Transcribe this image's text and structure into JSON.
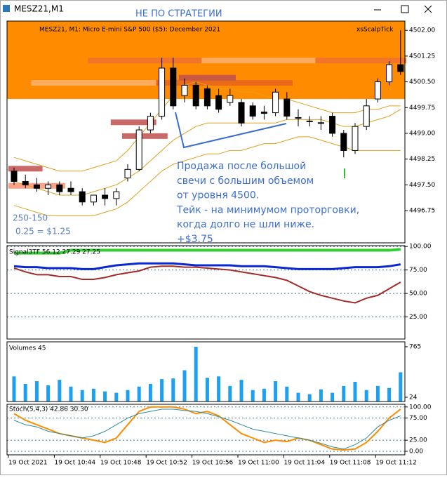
{
  "window": {
    "title": "MESZ21,M1",
    "note": "НЕ ПО СТРАТЕГИИ"
  },
  "main": {
    "header": "MESZ21, M1:  Micro E-mini S&P 500 ($5): December 2021",
    "indicator": "xsScalpTick",
    "ylim": [
      4495.81,
      4502.27
    ],
    "yticks": [
      {
        "value": 4502,
        "label": "4502.00"
      },
      {
        "value": 4501.25,
        "label": "4501.25"
      },
      {
        "value": 4500.5,
        "label": "4500.50"
      },
      {
        "value": 4499.75,
        "label": "4499.75"
      },
      {
        "value": 4499,
        "label": "4499.00"
      },
      {
        "value": 4498.25,
        "label": "4498.25"
      },
      {
        "value": 4497.5,
        "label": "4497.50"
      },
      {
        "value": 4496.75,
        "label": "4496.75"
      }
    ],
    "zone": {
      "from": 4500,
      "color": "#ff8c00"
    },
    "levels": [
      [
        4501.1,
        7,
        17
      ],
      [
        4501.1,
        27,
        35
      ],
      [
        4501.1,
        17,
        27
      ],
      [
        4500.45,
        2,
        13
      ],
      [
        4500.45,
        13,
        25
      ],
      [
        4500.6,
        15,
        20
      ],
      [
        4499.3,
        9,
        13
      ],
      [
        4498.9,
        10,
        14
      ],
      [
        4497.45,
        0,
        5
      ],
      [
        4497.95,
        0,
        3
      ]
    ],
    "level_colors": [
      "#f07030",
      "#f07030",
      "#ffb070",
      "#ffb070",
      "#e8641e",
      "#c0504d",
      "#c0504d",
      "#c0504d",
      "#ff9070",
      "#c0504d"
    ],
    "candles": [
      [
        4497.9,
        4498.0,
        4497.5,
        4497.6
      ],
      [
        4497.6,
        4497.8,
        4497.4,
        4497.5
      ],
      [
        4497.5,
        4497.7,
        4497.3,
        4497.4
      ],
      [
        4497.4,
        4497.6,
        4497.2,
        4497.5
      ],
      [
        4497.5,
        4497.6,
        4497.2,
        4497.3
      ],
      [
        4497.4,
        4497.6,
        4497.2,
        4497.3
      ],
      [
        4497.3,
        4497.4,
        4496.9,
        4497.0
      ],
      [
        4497.0,
        4497.2,
        4496.9,
        4497.2
      ],
      [
        4497.2,
        4497.4,
        4496.9,
        4497.1
      ],
      [
        4497.1,
        4497.4,
        4496.9,
        4497.3
      ],
      [
        4497.7,
        4498.1,
        4497.6,
        4497.95
      ],
      [
        4497.95,
        4499.2,
        4497.9,
        4499.1
      ],
      [
        4499.1,
        4499.6,
        4499.0,
        4499.5
      ],
      [
        4499.5,
        4501.2,
        4499.4,
        4500.9
      ],
      [
        4500.9,
        4501.2,
        4499.7,
        4499.8
      ],
      [
        4500.1,
        4500.6,
        4499.9,
        4500.4
      ],
      [
        4500.4,
        4500.5,
        4499.7,
        4499.8
      ],
      [
        4500.3,
        4500.4,
        4499.7,
        4499.8
      ],
      [
        4500.1,
        4500.3,
        4499.6,
        4499.7
      ],
      [
        4499.9,
        4500.3,
        4499.8,
        4500.1
      ],
      [
        4499.9,
        4500.0,
        4499.2,
        4499.3
      ],
      [
        4499.8,
        4499.9,
        4499.4,
        4499.5
      ],
      [
        4499.62,
        4499.8,
        4499.4,
        4499.58
      ],
      [
        4499.6,
        4500.3,
        4499.5,
        4500.2
      ],
      [
        4500.0,
        4500.2,
        4499.4,
        4499.5
      ],
      [
        4499.46,
        4499.7,
        4499.2,
        4499.44
      ],
      [
        4499.36,
        4499.5,
        4499.2,
        4499.34
      ],
      [
        4499.31,
        4499.5,
        4499.1,
        4499.29
      ],
      [
        4499.5,
        4499.6,
        4498.9,
        4499.0
      ],
      [
        4499.0,
        4499.1,
        4498.3,
        4498.5
      ],
      [
        4498.5,
        4499.3,
        4498.4,
        4499.2
      ],
      [
        4499.2,
        4500.0,
        4499.1,
        4499.8
      ],
      [
        4500.0,
        4500.6,
        4499.9,
        4500.5
      ],
      [
        4500.5,
        4501.1,
        4500.4,
        4501.0
      ],
      [
        4501.0,
        4502.0,
        4500.7,
        4500.8
      ]
    ],
    "bands": [
      [
        4498.3,
        4498.2,
        4498.1,
        4498.0,
        4497.9,
        4497.9,
        4497.9,
        4498.0,
        4498.1,
        4498.2,
        4498.5,
        4498.9,
        4499.3,
        4499.7,
        4500.1,
        4500.4,
        4500.5,
        4500.4,
        4500.3,
        4500.3,
        4500.2,
        4500.2,
        4500.1,
        4500.0,
        4500.0,
        4499.9,
        4499.8,
        4499.7,
        4499.6,
        4499.6,
        4499.6,
        4499.7,
        4499.7,
        4499.8,
        4499.8
      ],
      [
        4497.6,
        4497.5,
        4497.4,
        4497.3,
        4497.2,
        4497.2,
        4497.2,
        4497.3,
        4497.4,
        4497.5,
        4497.7,
        4497.9,
        4498.2,
        4498.5,
        4498.8,
        4499.0,
        4499.2,
        4499.3,
        4499.3,
        4499.3,
        4499.3,
        4499.3,
        4499.3,
        4499.3,
        4499.4,
        4499.4,
        4499.4,
        4499.4,
        4499.3,
        4499.2,
        4499.2,
        4499.3,
        4499.4,
        4499.5,
        4499.7
      ],
      [
        4496.9,
        4496.8,
        4496.7,
        4496.6,
        4496.6,
        4496.6,
        4496.6,
        4496.6,
        4496.7,
        4496.8,
        4497.0,
        4497.3,
        4497.6,
        4497.9,
        4498.1,
        4498.2,
        4498.3,
        4498.4,
        4498.4,
        4498.5,
        4498.5,
        4498.6,
        4498.7,
        4498.7,
        4498.8,
        4498.9,
        4498.9,
        4498.8,
        4498.7,
        4498.6,
        4498.5,
        4498.5,
        4498.5,
        4498.5,
        4498.5
      ]
    ],
    "annotation": [
      "Продажа после большой",
      "свечи с большим объемом",
      "от уровня 4500.",
      "Тейк - на минимумом проторговки,",
      "когда долго не шли ниже.",
      "+$3.75"
    ],
    "side_notes": [
      "250-150",
      "0.25 = $1.25"
    ]
  },
  "signal": {
    "header": "Signal3TF 56.12 27.29 27.25",
    "ylim": [
      1.5,
      100.9
    ],
    "yticks": [
      {
        "value": 100,
        "label": "100.00"
      },
      {
        "value": 75,
        "label": "75.00"
      },
      {
        "value": 50,
        "label": "50.00"
      },
      {
        "value": 25,
        "label": "25.00"
      }
    ],
    "series": [
      {
        "color": "#33cc33",
        "values": [
          93,
          93,
          93,
          93,
          93,
          96,
          96,
          96,
          96,
          96,
          96,
          96,
          96,
          96,
          96,
          96,
          96,
          96,
          96,
          96,
          96,
          96,
          96,
          96,
          96,
          96,
          96,
          96,
          96,
          96,
          96,
          96,
          96,
          96,
          97
        ]
      },
      {
        "color": "#0a28d2",
        "values": [
          79,
          78,
          78,
          77,
          77,
          77,
          76,
          76,
          78,
          80,
          81,
          82,
          82,
          82,
          82,
          81,
          80,
          80,
          80,
          80,
          79,
          79,
          79,
          78,
          77,
          76,
          76,
          76,
          76,
          77,
          78,
          78,
          78,
          79,
          81
        ]
      },
      {
        "color": "#a52a2a",
        "values": [
          77,
          73,
          70,
          70,
          68,
          68,
          65,
          65,
          67,
          70,
          72,
          74,
          78,
          79,
          79,
          78,
          78,
          77,
          76,
          75,
          73,
          71,
          69,
          67,
          64,
          58,
          52,
          48,
          45,
          42,
          40,
          45,
          48,
          55,
          62
        ]
      }
    ]
  },
  "volumes": {
    "header": "Volumes 45",
    "ylim": [
      -38,
      837
    ],
    "yticks": [
      765,
      24
    ],
    "color": "#1ea0f0",
    "values": [
      330,
      220,
      260,
      200,
      280,
      180,
      130,
      150,
      110,
      90,
      130,
      180,
      220,
      290,
      300,
      420,
      765,
      310,
      330,
      190,
      280,
      130,
      150,
      260,
      180,
      90,
      70,
      140,
      90,
      190,
      250,
      130,
      190,
      160,
      390
    ]
  },
  "stoch": {
    "header": "Stoch(5,4,3) 42.86 30.30",
    "ylim": [
      -8,
      106
    ],
    "yticks": [
      {
        "value": 100,
        "label": "100.00"
      },
      {
        "value": 75,
        "label": "75.00"
      },
      {
        "value": 25,
        "label": "25.00"
      },
      {
        "value": 0,
        "label": "0.00"
      }
    ],
    "series": [
      {
        "color": "#ff8c00",
        "values": [
          85,
          70,
          60,
          50,
          40,
          35,
          30,
          25,
          20,
          30,
          60,
          90,
          100,
          100,
          100,
          95,
          85,
          90,
          80,
          60,
          40,
          30,
          20,
          25,
          22,
          30,
          25,
          15,
          5,
          3,
          5,
          20,
          45,
          75,
          95
        ]
      },
      {
        "color": "#2e8b9a",
        "values": [
          70,
          60,
          55,
          45,
          40,
          35,
          30,
          35,
          45,
          60,
          75,
          85,
          90,
          95,
          95,
          92,
          90,
          85,
          78,
          70,
          60,
          50,
          45,
          40,
          35,
          30,
          25,
          18,
          10,
          5,
          15,
          30,
          55,
          70,
          80
        ]
      }
    ]
  },
  "time_labels": [
    "19 Oct 2021",
    "19 Oct 10:44",
    "19 Oct 10:48",
    "19 Oct 10:52",
    "19 Oct 10:56",
    "19 Oct 11:00",
    "19 Oct 11:04",
    "19 Oct 11:08",
    "19 Oct 11:12"
  ]
}
